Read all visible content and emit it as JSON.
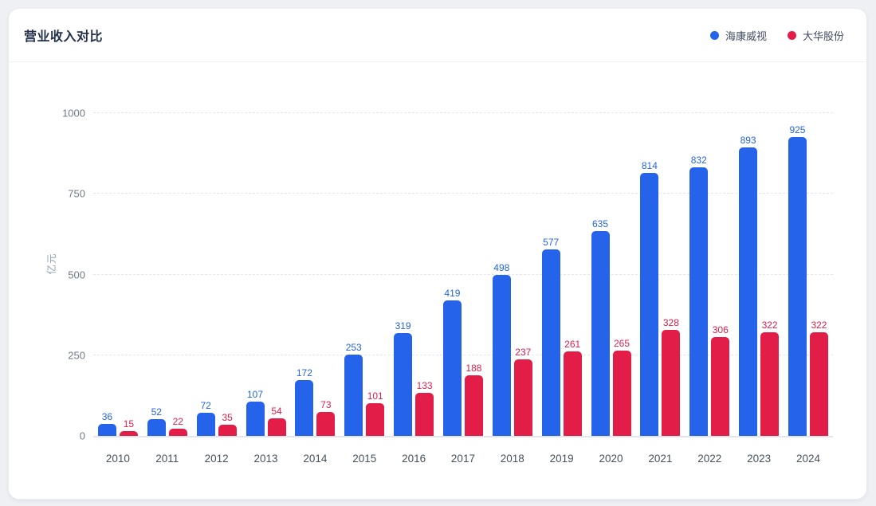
{
  "header": {
    "title": "营业收入对比"
  },
  "legend": {
    "items": [
      {
        "key": "hikvision",
        "label": "海康威视",
        "color": "#2563eb"
      },
      {
        "key": "dahua",
        "label": "大华股份",
        "color": "#e11d48"
      }
    ]
  },
  "chart_data": {
    "type": "bar",
    "title": "营业收入对比",
    "xlabel": "",
    "ylabel": "亿元",
    "categories": [
      "2010",
      "2011",
      "2012",
      "2013",
      "2014",
      "2015",
      "2016",
      "2017",
      "2018",
      "2019",
      "2020",
      "2021",
      "2022",
      "2023",
      "2024"
    ],
    "series": [
      {
        "key": "hikvision",
        "name": "海康威视",
        "color": "#2563eb",
        "values": [
          36,
          52,
          72,
          107,
          172,
          253,
          319,
          419,
          498,
          577,
          635,
          814,
          832,
          893,
          925
        ]
      },
      {
        "key": "dahua",
        "name": "大华股份",
        "color": "#e11d48",
        "values": [
          15,
          22,
          35,
          54,
          73,
          101,
          133,
          188,
          237,
          261,
          265,
          328,
          306,
          322,
          322
        ]
      }
    ],
    "ylim": [
      0,
      1000
    ],
    "yticks": [
      0,
      250,
      500,
      750,
      1000
    ],
    "grid": "horizontal-dashed",
    "legend_position": "top-right",
    "bar_value_labels": true
  }
}
